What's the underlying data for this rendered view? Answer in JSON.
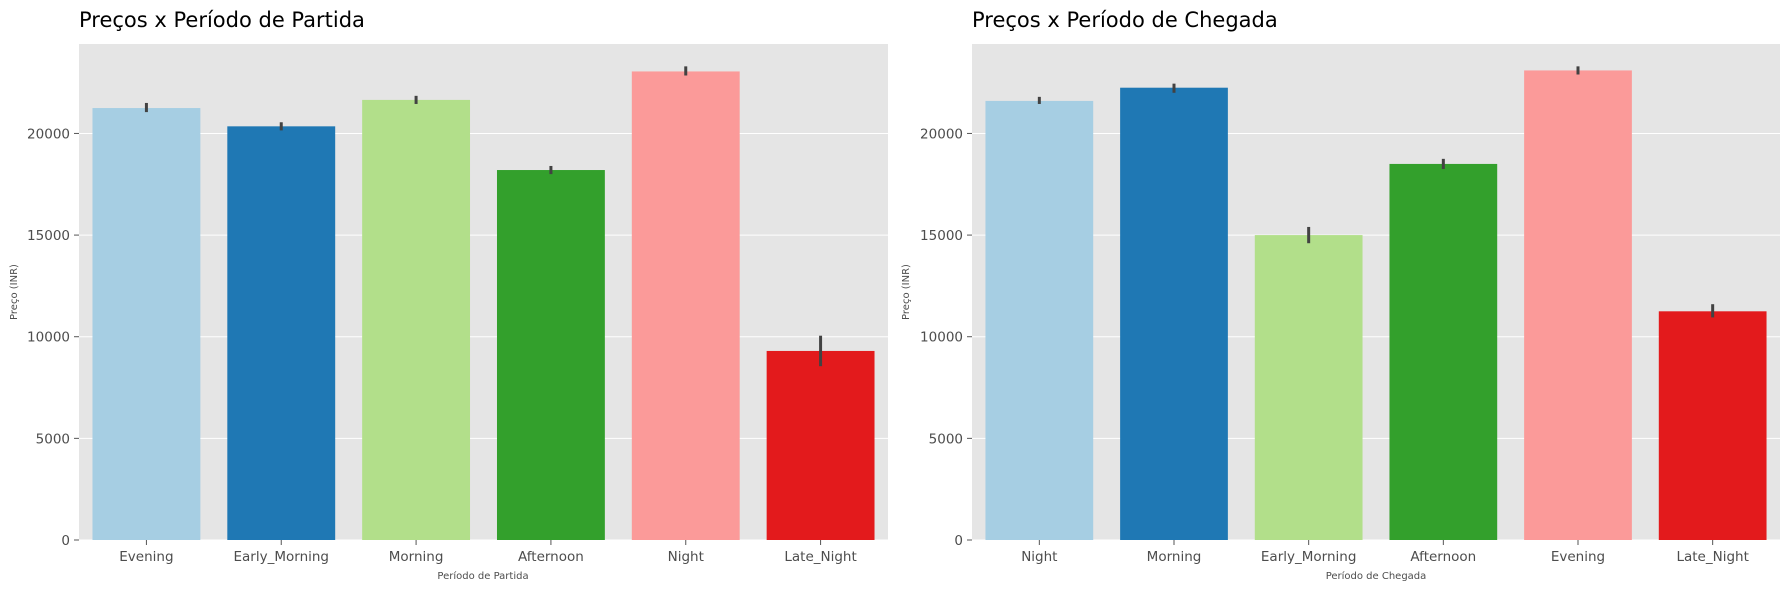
{
  "chart_data": [
    {
      "type": "bar",
      "title": "Preços x Período de Partida",
      "xlabel": "Período de Partida",
      "ylabel": "Preço (INR)",
      "categories": [
        "Evening",
        "Early_Morning",
        "Morning",
        "Afternoon",
        "Night",
        "Late_Night"
      ],
      "values": [
        21250,
        20350,
        21650,
        18200,
        23050,
        9300
      ],
      "error_low": [
        21050,
        20150,
        21450,
        18000,
        22850,
        8550
      ],
      "error_high": [
        21500,
        20550,
        21850,
        18400,
        23300,
        10050
      ],
      "colors": [
        "#a6cee3",
        "#1f78b4",
        "#b2df8a",
        "#33a02c",
        "#fb9a99",
        "#e31a1c"
      ],
      "ylim": [
        0,
        24400
      ],
      "yticks": [
        0,
        5000,
        10000,
        15000,
        20000
      ],
      "grid": true
    },
    {
      "type": "bar",
      "title": "Preços x Período de Chegada",
      "xlabel": "Período de Chegada",
      "ylabel": "Preço (INR)",
      "categories": [
        "Night",
        "Morning",
        "Early_Morning",
        "Afternoon",
        "Evening",
        "Late_Night"
      ],
      "values": [
        21600,
        22250,
        15000,
        18500,
        23100,
        11250
      ],
      "error_low": [
        21450,
        22000,
        14600,
        18250,
        22900,
        10950
      ],
      "error_high": [
        21800,
        22450,
        15400,
        18750,
        23300,
        11600
      ],
      "colors": [
        "#a6cee3",
        "#1f78b4",
        "#b2df8a",
        "#33a02c",
        "#fb9a99",
        "#e31a1c"
      ],
      "ylim": [
        0,
        24400
      ],
      "yticks": [
        0,
        5000,
        10000,
        15000,
        20000
      ],
      "grid": true
    }
  ]
}
